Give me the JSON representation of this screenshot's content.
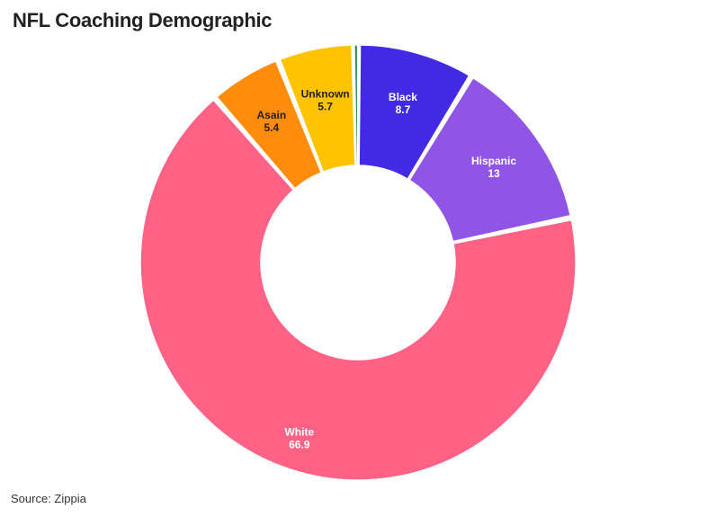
{
  "title": "NFL Coaching Demographic",
  "source": "Source: Zippia",
  "chart_data": {
    "type": "pie",
    "donut": true,
    "title": "NFL Coaching Demographic",
    "slices": [
      {
        "label": "Black",
        "value": 8.7,
        "value_text": "8.7",
        "color": "#4229e6",
        "text_color": "#ffffff"
      },
      {
        "label": "Hispanic",
        "value": 13,
        "value_text": "13",
        "color": "#9055e6",
        "text_color": "#ffffff"
      },
      {
        "label": "White",
        "value": 66.9,
        "value_text": "66.9",
        "color": "#ff6285",
        "text_color": "#ffffff"
      },
      {
        "label": "Asain",
        "value": 5.4,
        "value_text": "5.4",
        "color": "#ff8c0a",
        "text_color": "#222222"
      },
      {
        "label": "Unknown",
        "value": 5.7,
        "value_text": "5.7",
        "color": "#ffc300",
        "text_color": "#222222"
      },
      {
        "label": "",
        "value": 0.3,
        "value_text": "",
        "color": "#1f8a4c",
        "text_color": "#222222"
      }
    ]
  }
}
